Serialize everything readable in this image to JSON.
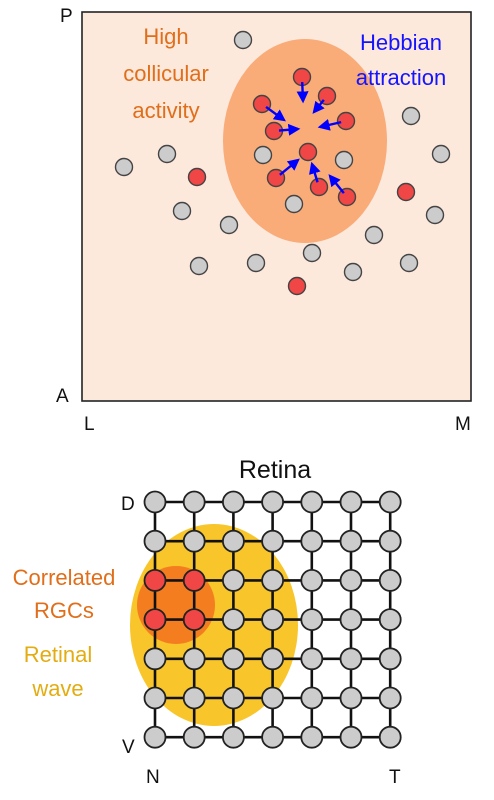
{
  "colliculus": {
    "axis_labels": {
      "top": "P",
      "bottom": "A",
      "left": "L",
      "right": "M"
    },
    "region_label": [
      "High",
      "collicular",
      "activity"
    ],
    "attraction_label": [
      "Hebbian",
      "attraction"
    ]
  },
  "retina": {
    "title": "Retina",
    "axis_labels": {
      "top": "D",
      "bottom": "V",
      "left": "N",
      "right": "T"
    },
    "correlated_label": [
      "Correlated",
      "RGCs"
    ],
    "wave_label": [
      "Retinal",
      "wave"
    ],
    "grid": {
      "rows": 7,
      "cols": 7
    },
    "active_nodes": [
      [
        2,
        0
      ],
      [
        2,
        1
      ],
      [
        3,
        0
      ],
      [
        3,
        1
      ]
    ]
  },
  "colors": {
    "panel_fill": "#fde8dc",
    "activity_zone": "#f9ab78",
    "inactive_neuron": "#cccccc",
    "active_neuron": "#f04646",
    "hebbian_arrow": "#0000ff",
    "activity_text": "#e06e1a",
    "hebbian_text": "#1414ff",
    "wave_fill": "#f8c52a",
    "correlated_fill": "#f47d20",
    "wave_text": "#e3ac12"
  }
}
